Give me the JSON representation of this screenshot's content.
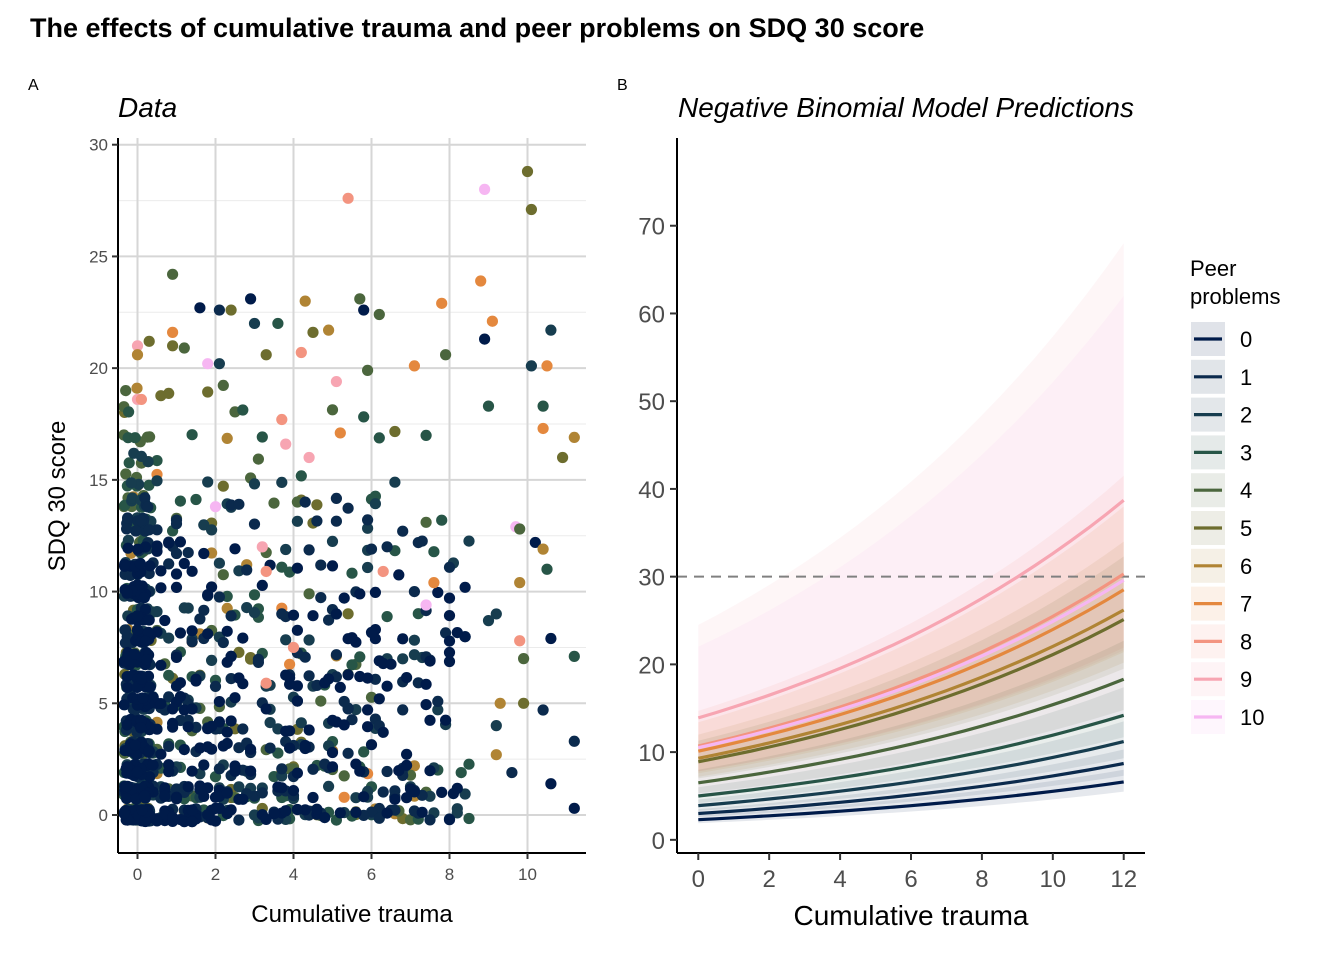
{
  "figure_title": "The effects of cumulative trauma and peer problems on SDQ 30 score",
  "colors": {
    "0": "#001b4a",
    "1": "#0b2a4d",
    "2": "#173d4f",
    "3": "#275547",
    "4": "#4b663d",
    "5": "#6d6d2e",
    "6": "#b08434",
    "7": "#e4883e",
    "8": "#f39480",
    "9": "#f7a5b2",
    "10": "#f6b6f2"
  },
  "chart_data": [
    {
      "panel": "A",
      "type": "scatter",
      "title": "Data",
      "xlabel": "Cumulative trauma",
      "ylabel": "SDQ 30 score",
      "xlim": [
        -0.5,
        11.5
      ],
      "ylim": [
        -1.7,
        30.3
      ],
      "xticks": [
        0,
        2,
        4,
        6,
        8,
        10
      ],
      "yticks": [
        0,
        5,
        10,
        15,
        20,
        25,
        30
      ],
      "grid": true,
      "note": "Dense scatter of ~1500 children; outlying points listed exactly, dense mass summarized by group",
      "points": [
        {
          "x": 10.0,
          "y": 28.8,
          "g": 5
        },
        {
          "x": 10.1,
          "y": 27.1,
          "g": 5
        },
        {
          "x": 8.9,
          "y": 28.0,
          "g": 10
        },
        {
          "x": 5.4,
          "y": 27.6,
          "g": 8
        },
        {
          "x": 8.8,
          "y": 23.9,
          "g": 7
        },
        {
          "x": 0.9,
          "y": 24.2,
          "g": 4
        },
        {
          "x": 1.6,
          "y": 22.7,
          "g": 0
        },
        {
          "x": 2.1,
          "y": 22.6,
          "g": 1
        },
        {
          "x": 2.4,
          "y": 22.6,
          "g": 5
        },
        {
          "x": 2.9,
          "y": 23.1,
          "g": 0
        },
        {
          "x": 4.3,
          "y": 23.0,
          "g": 6
        },
        {
          "x": 5.7,
          "y": 23.1,
          "g": 4
        },
        {
          "x": 5.8,
          "y": 22.6,
          "g": 0
        },
        {
          "x": 6.2,
          "y": 22.4,
          "g": 4
        },
        {
          "x": 7.8,
          "y": 22.9,
          "g": 7
        },
        {
          "x": 9.1,
          "y": 22.1,
          "g": 7
        },
        {
          "x": 10.6,
          "y": 21.7,
          "g": 2
        },
        {
          "x": 8.9,
          "y": 21.3,
          "g": 0
        },
        {
          "x": 3.0,
          "y": 22.0,
          "g": 2
        },
        {
          "x": 3.6,
          "y": 22.0,
          "g": 3
        },
        {
          "x": 4.5,
          "y": 21.6,
          "g": 5
        },
        {
          "x": 4.9,
          "y": 21.7,
          "g": 6
        },
        {
          "x": 0.9,
          "y": 21.6,
          "g": 7
        },
        {
          "x": 0.3,
          "y": 21.2,
          "g": 5
        },
        {
          "x": 0.9,
          "y": 21.0,
          "g": 5
        },
        {
          "x": 1.2,
          "y": 20.9,
          "g": 4
        },
        {
          "x": 0.0,
          "y": 21.0,
          "g": 9
        },
        {
          "x": 0.0,
          "y": 20.6,
          "g": 6
        },
        {
          "x": 4.2,
          "y": 20.7,
          "g": 8
        },
        {
          "x": 5.9,
          "y": 19.9,
          "g": 4
        },
        {
          "x": 10.1,
          "y": 20.1,
          "g": 2
        },
        {
          "x": 10.5,
          "y": 20.1,
          "g": 7
        },
        {
          "x": 7.9,
          "y": 20.6,
          "g": 4
        },
        {
          "x": 7.1,
          "y": 20.1,
          "g": 7
        },
        {
          "x": 1.8,
          "y": 20.2,
          "g": 10
        },
        {
          "x": 3.3,
          "y": 20.6,
          "g": 5
        },
        {
          "x": 2.1,
          "y": 20.2,
          "g": 2
        },
        {
          "x": 5.1,
          "y": 19.4,
          "g": 9
        },
        {
          "x": 0.0,
          "y": 18.6,
          "g": 9
        },
        {
          "x": 0.1,
          "y": 18.6,
          "g": 8
        },
        {
          "x": 10.4,
          "y": 18.3,
          "g": 3
        },
        {
          "x": 9.0,
          "y": 18.3,
          "g": 3
        },
        {
          "x": 10.4,
          "y": 17.3,
          "g": 7
        },
        {
          "x": 11.2,
          "y": 16.9,
          "g": 6
        },
        {
          "x": 10.9,
          "y": 16.0,
          "g": 5
        },
        {
          "x": 9.7,
          "y": 12.9,
          "g": 10
        },
        {
          "x": 9.8,
          "y": 12.8,
          "g": 4
        },
        {
          "x": 10.2,
          "y": 12.2,
          "g": 0
        },
        {
          "x": 10.4,
          "y": 11.9,
          "g": 6
        },
        {
          "x": 9.8,
          "y": 10.4,
          "g": 6
        },
        {
          "x": 10.5,
          "y": 11.0,
          "g": 3
        },
        {
          "x": 9.8,
          "y": 7.8,
          "g": 8
        },
        {
          "x": 10.6,
          "y": 7.9,
          "g": 0
        },
        {
          "x": 11.2,
          "y": 7.1,
          "g": 3
        },
        {
          "x": 9.9,
          "y": 7.0,
          "g": 4
        },
        {
          "x": 9.9,
          "y": 5.0,
          "g": 5
        },
        {
          "x": 10.4,
          "y": 4.7,
          "g": 1
        },
        {
          "x": 11.2,
          "y": 3.3,
          "g": 1
        },
        {
          "x": 10.6,
          "y": 1.4,
          "g": 0
        },
        {
          "x": 11.2,
          "y": 0.3,
          "g": 0
        },
        {
          "x": 9.6,
          "y": 1.9,
          "g": 1
        },
        {
          "x": 9.2,
          "y": 4.0,
          "g": 2
        },
        {
          "x": 9.3,
          "y": 5.0,
          "g": 6
        },
        {
          "x": 9.2,
          "y": 2.7,
          "g": 6
        },
        {
          "x": 9.2,
          "y": 9.0,
          "g": 2
        },
        {
          "x": 9.0,
          "y": 8.7,
          "g": 2
        },
        {
          "x": 7.4,
          "y": 9.4,
          "g": 10
        },
        {
          "x": 7.6,
          "y": 10.4,
          "g": 7
        },
        {
          "x": 6.3,
          "y": 10.9,
          "g": 8
        },
        {
          "x": 3.3,
          "y": 10.9,
          "g": 8
        },
        {
          "x": 3.2,
          "y": 12.0,
          "g": 9
        },
        {
          "x": 2.0,
          "y": 13.8,
          "g": 10
        },
        {
          "x": 4.0,
          "y": 7.5,
          "g": 8
        },
        {
          "x": 3.3,
          "y": 5.9,
          "g": 8
        },
        {
          "x": 5.2,
          "y": 17.1,
          "g": 7
        },
        {
          "x": 3.7,
          "y": 17.7,
          "g": 8
        },
        {
          "x": 3.8,
          "y": 16.6,
          "g": 9
        },
        {
          "x": 4.4,
          "y": 16.0,
          "g": 9
        }
      ],
      "dense_groups": [
        {
          "g": 0,
          "n": 420,
          "xmax": 8.5,
          "ymax": 12,
          "xmode": 0
        },
        {
          "g": 1,
          "n": 300,
          "xmax": 8,
          "ymax": 14,
          "xmode": 0
        },
        {
          "g": 2,
          "n": 240,
          "xmax": 8.5,
          "ymax": 16,
          "xmode": 0
        },
        {
          "g": 3,
          "n": 160,
          "xmax": 8.5,
          "ymax": 18,
          "xmode": 0
        },
        {
          "g": 4,
          "n": 90,
          "xmax": 8,
          "ymax": 19,
          "xmode": 0
        },
        {
          "g": 5,
          "n": 55,
          "xmax": 7.5,
          "ymax": 20,
          "xmode": 0
        },
        {
          "g": 6,
          "n": 30,
          "xmax": 7.5,
          "ymax": 19,
          "xmode": 0
        },
        {
          "g": 7,
          "n": 10,
          "xmax": 7,
          "ymax": 18,
          "xmode": 0
        }
      ]
    },
    {
      "panel": "B",
      "type": "line",
      "title": "Negative Binomial Model Predictions",
      "xlabel": "Cumulative trauma",
      "ylabel": "",
      "xlim": [
        -0.6,
        12.6
      ],
      "ylim": [
        -1.5,
        80
      ],
      "xticks": [
        0,
        2,
        4,
        6,
        8,
        10,
        12
      ],
      "yticks": [
        0,
        10,
        20,
        30,
        40,
        50,
        60,
        70
      ],
      "grid": false,
      "reference_line": {
        "y": 30,
        "style": "dashed"
      },
      "legend": {
        "title": [
          "Peer",
          "problems"
        ],
        "position": "right"
      },
      "x": [
        0,
        2,
        4,
        6,
        8,
        10,
        12
      ],
      "series": [
        {
          "name": "0",
          "start": 2.3,
          "end": 6.6,
          "lo_start": 1.9,
          "lo_end": 5.5,
          "hi_start": 2.8,
          "hi_end": 8.0
        },
        {
          "name": "1",
          "start": 3.0,
          "end": 8.7,
          "lo_start": 2.6,
          "lo_end": 7.3,
          "hi_start": 3.5,
          "hi_end": 10.3
        },
        {
          "name": "2",
          "start": 3.9,
          "end": 11.2,
          "lo_start": 3.3,
          "lo_end": 9.3,
          "hi_start": 4.6,
          "hi_end": 13.5
        },
        {
          "name": "3",
          "start": 5.0,
          "end": 14.2,
          "lo_start": 4.2,
          "lo_end": 11.7,
          "hi_start": 6.0,
          "hi_end": 17.4
        },
        {
          "name": "4",
          "start": 6.5,
          "end": 18.3,
          "lo_start": 5.3,
          "lo_end": 14.8,
          "hi_start": 8.0,
          "hi_end": 22.7
        },
        {
          "name": "5",
          "start": 8.9,
          "end": 25.1,
          "lo_start": 7.0,
          "lo_end": 19.5,
          "hi_start": 11.3,
          "hi_end": 32.3
        },
        {
          "name": "6",
          "start": 9.3,
          "end": 26.2,
          "lo_start": 7.2,
          "lo_end": 20.2,
          "hi_start": 12.0,
          "hi_end": 34.0
        },
        {
          "name": "7",
          "start": 10.1,
          "end": 28.5,
          "lo_start": 7.6,
          "lo_end": 21.4,
          "hi_start": 13.4,
          "hi_end": 38.0
        },
        {
          "name": "8",
          "start": 10.7,
          "end": 30.3,
          "lo_start": 7.8,
          "lo_end": 21.9,
          "hi_start": 14.7,
          "hi_end": 41.5
        },
        {
          "name": "9",
          "start": 13.9,
          "end": 38.7,
          "lo_start": 7.8,
          "lo_end": 21.6,
          "hi_start": 24.5,
          "hi_end": 68.0
        },
        {
          "name": "10",
          "start": 10.5,
          "end": 29.6,
          "lo_start": 5.0,
          "lo_end": 14.0,
          "hi_start": 22.0,
          "hi_end": 62.0
        }
      ]
    }
  ]
}
